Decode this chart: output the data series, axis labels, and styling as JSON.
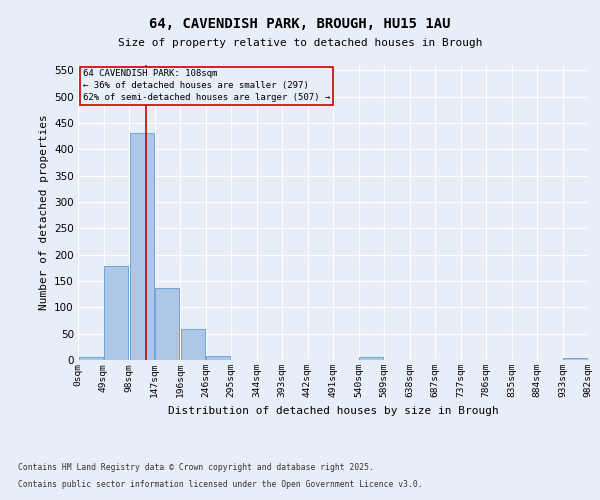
{
  "title_line1": "64, CAVENDISH PARK, BROUGH, HU15 1AU",
  "title_line2": "Size of property relative to detached houses in Brough",
  "xlabel": "Distribution of detached houses by size in Brough",
  "ylabel": "Number of detached properties",
  "bar_values": [
    5,
    178,
    430,
    136,
    59,
    8,
    0,
    0,
    0,
    0,
    0,
    5,
    0,
    0,
    0,
    0,
    0,
    0,
    0,
    4
  ],
  "bar_labels": [
    "0sqm",
    "49sqm",
    "98sqm",
    "147sqm",
    "196sqm",
    "246sqm",
    "295sqm",
    "344sqm",
    "393sqm",
    "442sqm",
    "491sqm",
    "540sqm",
    "589sqm",
    "638sqm",
    "687sqm",
    "737sqm",
    "786sqm",
    "835sqm",
    "884sqm",
    "933sqm",
    "982sqm"
  ],
  "bar_color": "#aec6e8",
  "bar_edge_color": "#5a9fd4",
  "bg_color": "#e8eef8",
  "grid_color": "#ffffff",
  "vline_x": 2.18,
  "annotation_text": "64 CAVENDISH PARK: 108sqm\n← 36% of detached houses are smaller (297)\n62% of semi-detached houses are larger (507) →",
  "annotation_box_color": "#cc0000",
  "ylim": [
    0,
    560
  ],
  "yticks": [
    0,
    50,
    100,
    150,
    200,
    250,
    300,
    350,
    400,
    450,
    500,
    550
  ],
  "footer_line1": "Contains HM Land Registry data © Crown copyright and database right 2025.",
  "footer_line2": "Contains public sector information licensed under the Open Government Licence v3.0."
}
